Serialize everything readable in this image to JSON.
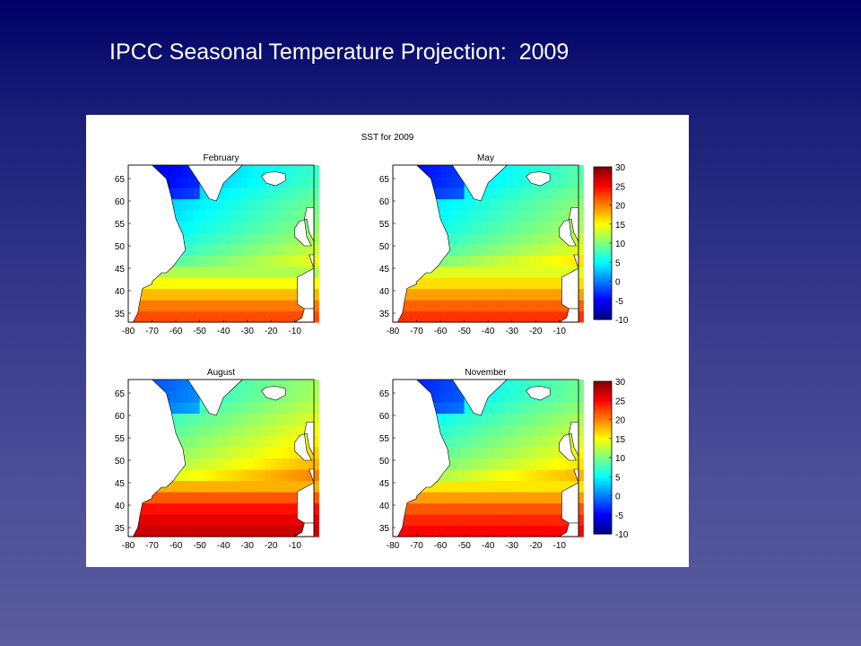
{
  "slide": {
    "title": "IPCC Seasonal Temperature Projection:  2009"
  },
  "chart_data": {
    "type": "heatmap",
    "title": "SST for 2009",
    "xticks": [
      -80,
      -70,
      -60,
      -50,
      -40,
      -30,
      -20,
      -10
    ],
    "yticks": [
      35,
      40,
      45,
      50,
      55,
      60,
      65
    ],
    "xlim": [
      -80,
      -2
    ],
    "ylim": [
      33,
      68
    ],
    "colorbar": {
      "ticks": [
        30,
        25,
        20,
        15,
        10,
        5,
        0,
        -5,
        -10
      ],
      "range": [
        -10,
        30
      ]
    },
    "panels": [
      {
        "name": "February",
        "sst_by_latitude": [
          {
            "lat": 35,
            "value": 22
          },
          {
            "lat": 40,
            "value": 17
          },
          {
            "lat": 45,
            "value": 11
          },
          {
            "lat": 50,
            "value": 8
          },
          {
            "lat": 55,
            "value": 6
          },
          {
            "lat": 60,
            "value": 5
          },
          {
            "lat": 65,
            "value": 3
          }
        ]
      },
      {
        "name": "May",
        "sst_by_latitude": [
          {
            "lat": 35,
            "value": 23
          },
          {
            "lat": 40,
            "value": 18
          },
          {
            "lat": 45,
            "value": 13
          },
          {
            "lat": 50,
            "value": 9
          },
          {
            "lat": 55,
            "value": 7
          },
          {
            "lat": 60,
            "value": 6
          },
          {
            "lat": 65,
            "value": 4
          }
        ]
      },
      {
        "name": "August",
        "sst_by_latitude": [
          {
            "lat": 35,
            "value": 27
          },
          {
            "lat": 40,
            "value": 24
          },
          {
            "lat": 45,
            "value": 17
          },
          {
            "lat": 50,
            "value": 13
          },
          {
            "lat": 55,
            "value": 11
          },
          {
            "lat": 60,
            "value": 9
          },
          {
            "lat": 65,
            "value": 7
          }
        ]
      },
      {
        "name": "November",
        "sst_by_latitude": [
          {
            "lat": 35,
            "value": 25
          },
          {
            "lat": 40,
            "value": 21
          },
          {
            "lat": 45,
            "value": 15
          },
          {
            "lat": 50,
            "value": 11
          },
          {
            "lat": 55,
            "value": 9
          },
          {
            "lat": 60,
            "value": 7
          },
          {
            "lat": 65,
            "value": 5
          }
        ]
      }
    ]
  }
}
